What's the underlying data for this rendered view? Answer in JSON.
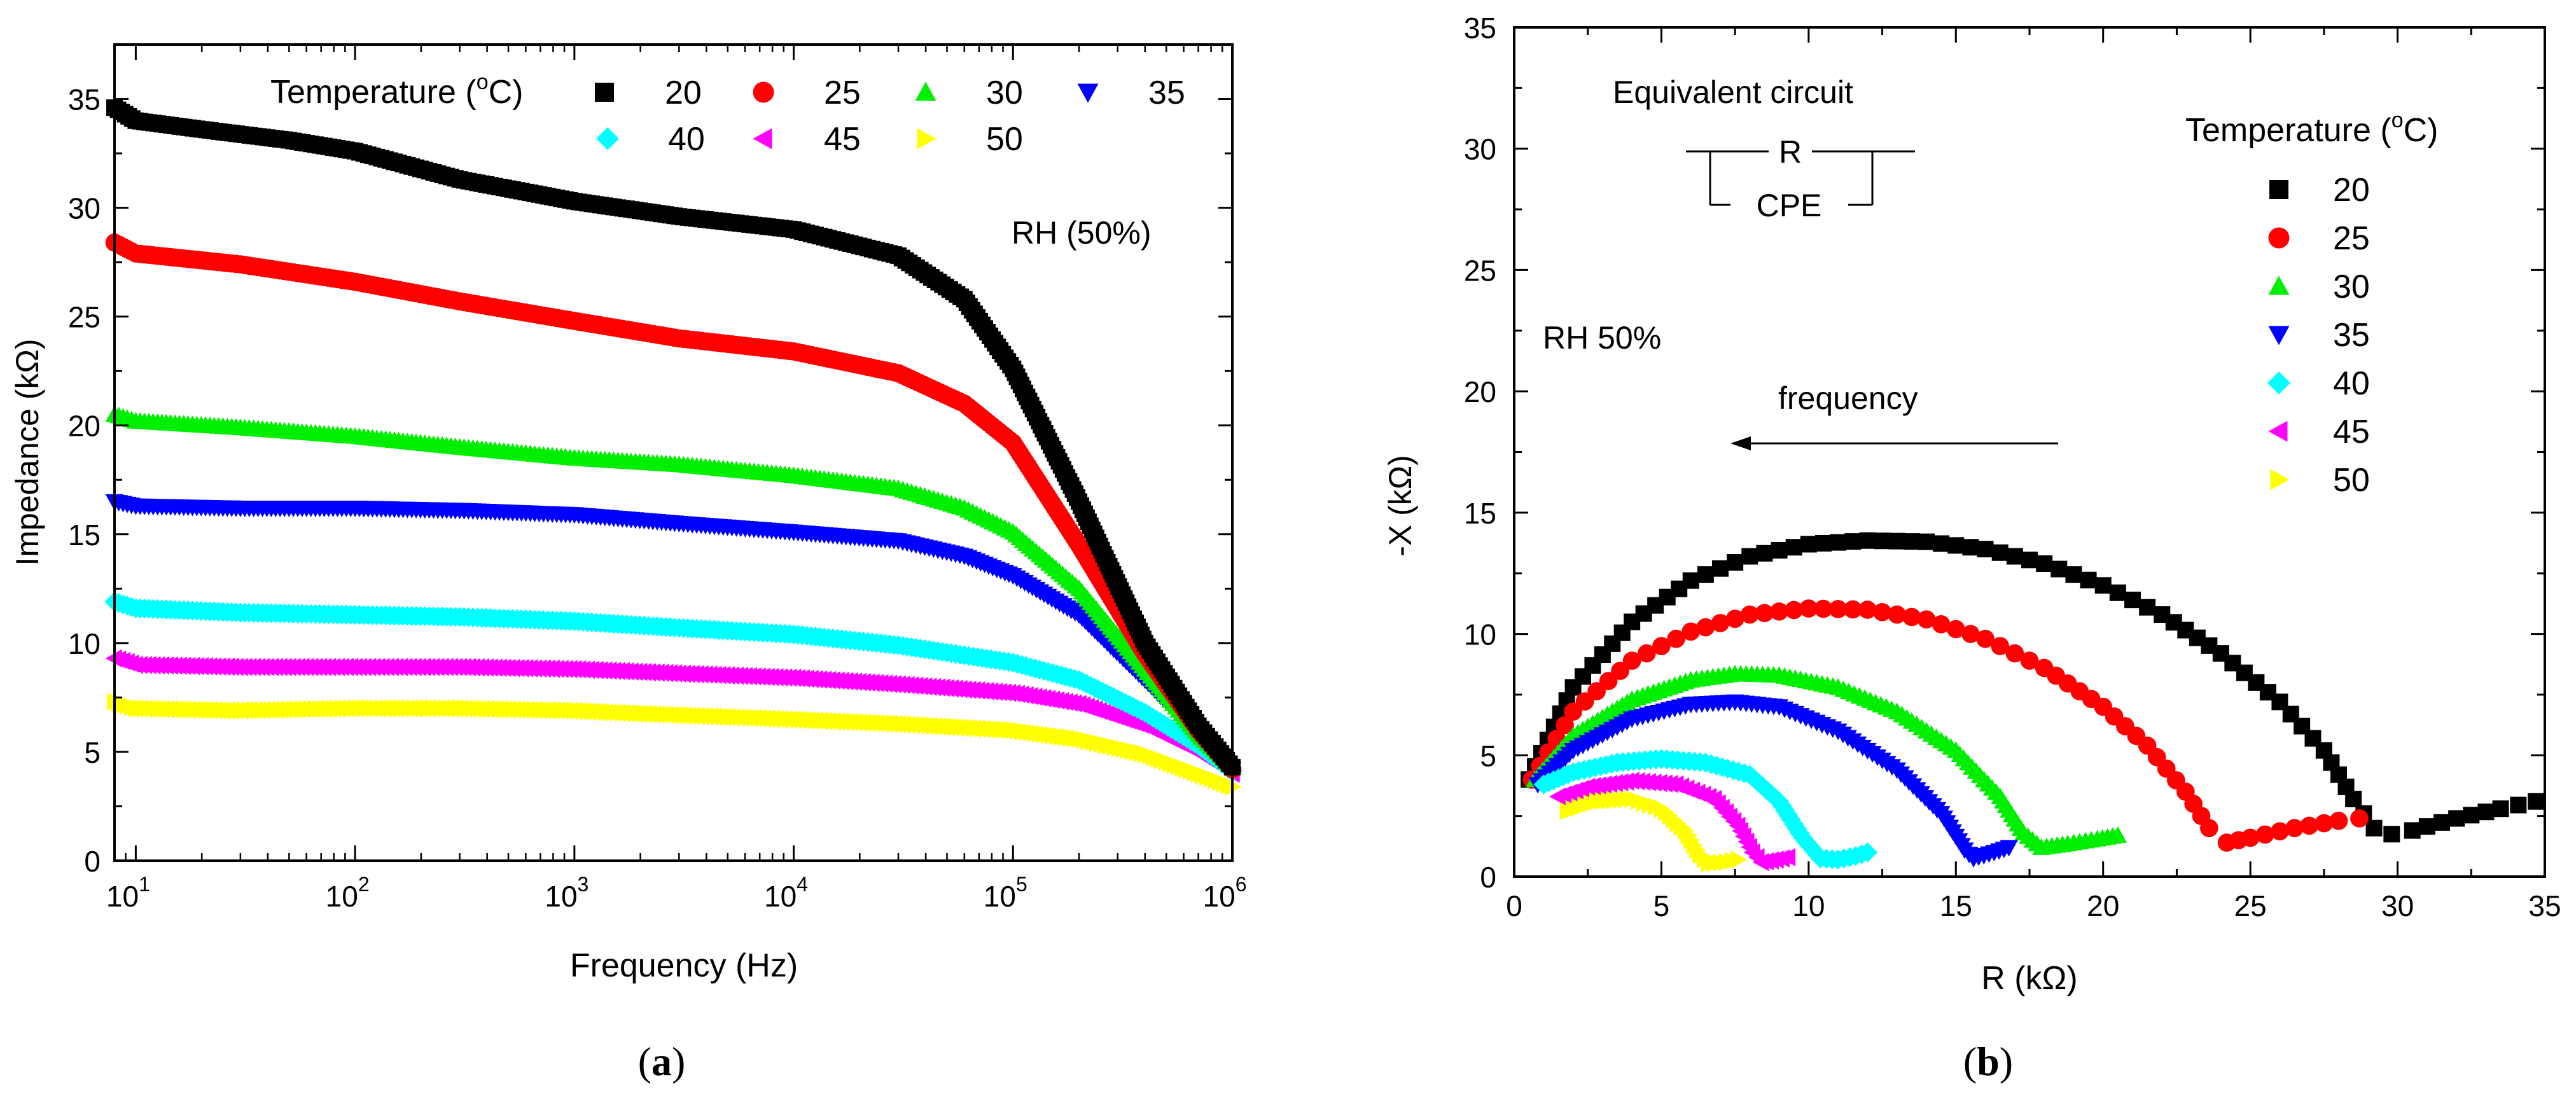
{
  "chart_data": [
    {
      "panel": "(a)",
      "type": "scatter",
      "title": "",
      "xlabel": "Frequency (Hz)",
      "ylabel": "Impedance (kΩ)",
      "xscale": "log",
      "xlim": [
        8,
        1000000
      ],
      "ylim": [
        0,
        37.5
      ],
      "xticks": [
        {
          "value": 10,
          "base": "10",
          "exp": "1"
        },
        {
          "value": 100,
          "base": "10",
          "exp": "2"
        },
        {
          "value": 1000,
          "base": "10",
          "exp": "3"
        },
        {
          "value": 10000,
          "base": "10",
          "exp": "4"
        },
        {
          "value": 100000,
          "base": "10",
          "exp": "5"
        },
        {
          "value": 1000000,
          "base": "10",
          "exp": "6"
        }
      ],
      "yticks": [
        "0",
        "5",
        "10",
        "15",
        "20",
        "25",
        "30",
        "35"
      ],
      "legend_title_pre": "Temperature (",
      "legend_title_deg": "o",
      "legend_title_post": "C)",
      "annotation": "RH (50%)",
      "series": [
        {
          "name": "20",
          "color": "#000000",
          "marker": "square",
          "points": [
            [
              8,
              34.6
            ],
            [
              10,
              34.0
            ],
            [
              20,
              33.6
            ],
            [
              50,
              33.1
            ],
            [
              100,
              32.6
            ],
            [
              300,
              31.3
            ],
            [
              1000,
              30.3
            ],
            [
              3000,
              29.6
            ],
            [
              10000,
              29.0
            ],
            [
              30000,
              27.8
            ],
            [
              60000,
              25.8
            ],
            [
              100000,
              22.6
            ],
            [
              200000,
              16.5
            ],
            [
              400000,
              10.0
            ],
            [
              700000,
              6.2
            ],
            [
              1000000,
              4.3
            ]
          ]
        },
        {
          "name": "25",
          "color": "#ff0000",
          "marker": "circle",
          "points": [
            [
              8,
              28.4
            ],
            [
              10,
              27.9
            ],
            [
              30,
              27.4
            ],
            [
              100,
              26.6
            ],
            [
              300,
              25.7
            ],
            [
              1000,
              24.8
            ],
            [
              3000,
              24.0
            ],
            [
              10000,
              23.4
            ],
            [
              30000,
              22.4
            ],
            [
              60000,
              21.0
            ],
            [
              100000,
              19.2
            ],
            [
              200000,
              14.5
            ],
            [
              400000,
              9.5
            ],
            [
              700000,
              6.0
            ],
            [
              1000000,
              4.2
            ]
          ]
        },
        {
          "name": "30",
          "color": "#00ee00",
          "marker": "triangle-up",
          "points": [
            [
              8,
              20.5
            ],
            [
              10,
              20.2
            ],
            [
              30,
              19.9
            ],
            [
              100,
              19.5
            ],
            [
              300,
              19.0
            ],
            [
              1000,
              18.5
            ],
            [
              3000,
              18.2
            ],
            [
              10000,
              17.7
            ],
            [
              30000,
              17.1
            ],
            [
              60000,
              16.2
            ],
            [
              100000,
              15.1
            ],
            [
              200000,
              12.5
            ],
            [
              400000,
              8.8
            ],
            [
              700000,
              5.8
            ],
            [
              1000000,
              4.3
            ]
          ]
        },
        {
          "name": "35",
          "color": "#0000ff",
          "marker": "triangle-down",
          "points": [
            [
              8,
              16.5
            ],
            [
              10,
              16.3
            ],
            [
              30,
              16.2
            ],
            [
              100,
              16.2
            ],
            [
              300,
              16.1
            ],
            [
              1000,
              15.9
            ],
            [
              3000,
              15.5
            ],
            [
              10000,
              15.1
            ],
            [
              30000,
              14.7
            ],
            [
              60000,
              14.0
            ],
            [
              100000,
              13.1
            ],
            [
              200000,
              11.3
            ],
            [
              400000,
              8.3
            ],
            [
              700000,
              5.8
            ],
            [
              1000000,
              4.2
            ]
          ]
        },
        {
          "name": "40",
          "color": "#00ffff",
          "marker": "diamond",
          "points": [
            [
              8,
              11.9
            ],
            [
              10,
              11.6
            ],
            [
              30,
              11.4
            ],
            [
              100,
              11.3
            ],
            [
              300,
              11.2
            ],
            [
              1000,
              11.0
            ],
            [
              3000,
              10.7
            ],
            [
              10000,
              10.4
            ],
            [
              30000,
              9.9
            ],
            [
              100000,
              9.1
            ],
            [
              200000,
              8.3
            ],
            [
              400000,
              6.8
            ],
            [
              700000,
              5.3
            ],
            [
              1000000,
              4.1
            ]
          ]
        },
        {
          "name": "45",
          "color": "#ff00ff",
          "marker": "triangle-left",
          "points": [
            [
              8,
              9.3
            ],
            [
              10,
              9.0
            ],
            [
              30,
              8.9
            ],
            [
              100,
              8.9
            ],
            [
              300,
              8.9
            ],
            [
              1000,
              8.8
            ],
            [
              3000,
              8.6
            ],
            [
              10000,
              8.4
            ],
            [
              30000,
              8.1
            ],
            [
              100000,
              7.7
            ],
            [
              200000,
              7.2
            ],
            [
              400000,
              6.2
            ],
            [
              700000,
              5.0
            ],
            [
              1000000,
              4.0
            ]
          ]
        },
        {
          "name": "50",
          "color": "#ffff00",
          "marker": "triangle-right",
          "points": [
            [
              8,
              7.3
            ],
            [
              10,
              7.0
            ],
            [
              30,
              6.9
            ],
            [
              100,
              7.0
            ],
            [
              300,
              7.0
            ],
            [
              1000,
              6.9
            ],
            [
              3000,
              6.7
            ],
            [
              10000,
              6.5
            ],
            [
              30000,
              6.3
            ],
            [
              100000,
              6.0
            ],
            [
              200000,
              5.6
            ],
            [
              400000,
              4.9
            ],
            [
              700000,
              4.0
            ],
            [
              1000000,
              3.4
            ]
          ]
        }
      ]
    },
    {
      "panel": "(b)",
      "type": "scatter",
      "title": "",
      "xlabel": "R (kΩ)",
      "ylabel": "-X (kΩ)",
      "xlim": [
        0,
        35
      ],
      "ylim": [
        0,
        35
      ],
      "xticks": [
        "0",
        "5",
        "10",
        "15",
        "20",
        "25",
        "30",
        "35"
      ],
      "yticks": [
        "0",
        "5",
        "10",
        "15",
        "20",
        "25",
        "30",
        "35"
      ],
      "legend_title_pre": "Temperature (",
      "legend_title_deg": "o",
      "legend_title_post": "C)",
      "annotation": "RH 50%",
      "circuit_title": "Equivalent circuit",
      "circuit_r": "R",
      "circuit_cpe": "CPE",
      "arrow_label": "frequency",
      "series": [
        {
          "name": "20",
          "color": "#000000",
          "marker": "square",
          "points": [
            [
              0.5,
              4.0
            ],
            [
              2,
              7.8
            ],
            [
              4,
              10.5
            ],
            [
              6,
              12.2
            ],
            [
              8,
              13.2
            ],
            [
              10,
              13.7
            ],
            [
              12,
              13.85
            ],
            [
              14,
              13.8
            ],
            [
              16,
              13.5
            ],
            [
              18,
              12.9
            ],
            [
              20,
              12.0
            ],
            [
              22,
              10.8
            ],
            [
              24,
              9.2
            ],
            [
              26,
              7.2
            ],
            [
              27.5,
              5.2
            ],
            [
              28.5,
              3.2
            ],
            [
              29.2,
              2.0
            ],
            [
              29.8,
              1.75
            ],
            [
              30.5,
              1.9
            ],
            [
              32,
              2.4
            ],
            [
              33.5,
              2.8
            ],
            [
              34.7,
              3.1
            ]
          ]
        },
        {
          "name": "25",
          "color": "#ff0000",
          "marker": "circle",
          "points": [
            [
              0.6,
              4.0
            ],
            [
              2,
              6.8
            ],
            [
              4,
              8.9
            ],
            [
              6,
              10.1
            ],
            [
              8,
              10.8
            ],
            [
              10,
              11.05
            ],
            [
              12,
              11.0
            ],
            [
              14,
              10.6
            ],
            [
              16,
              9.8
            ],
            [
              18,
              8.6
            ],
            [
              20,
              7.0
            ],
            [
              21.5,
              5.4
            ],
            [
              22.8,
              3.5
            ],
            [
              23.6,
              2.0
            ],
            [
              24.2,
              1.4
            ],
            [
              25,
              1.6
            ],
            [
              26.5,
              2.0
            ],
            [
              28,
              2.3
            ],
            [
              28.7,
              2.4
            ]
          ]
        },
        {
          "name": "30",
          "color": "#00ee00",
          "marker": "triangle-up",
          "points": [
            [
              0.7,
              4.0
            ],
            [
              2,
              5.8
            ],
            [
              4,
              7.3
            ],
            [
              6,
              8.1
            ],
            [
              7.5,
              8.35
            ],
            [
              9,
              8.3
            ],
            [
              11,
              7.8
            ],
            [
              13,
              6.8
            ],
            [
              15,
              5.2
            ],
            [
              16.5,
              3.3
            ],
            [
              17.3,
              1.8
            ],
            [
              17.9,
              1.2
            ],
            [
              18.8,
              1.35
            ],
            [
              19.8,
              1.55
            ],
            [
              20.5,
              1.7
            ]
          ]
        },
        {
          "name": "35",
          "color": "#0000ff",
          "marker": "triangle-down",
          "points": [
            [
              0.8,
              3.8
            ],
            [
              2,
              5.2
            ],
            [
              4,
              6.5
            ],
            [
              6,
              7.1
            ],
            [
              7.5,
              7.2
            ],
            [
              9,
              7.0
            ],
            [
              11,
              6.0
            ],
            [
              13,
              4.4
            ],
            [
              14.5,
              2.6
            ],
            [
              15.3,
              1.1
            ],
            [
              15.6,
              0.75
            ],
            [
              16.3,
              1.0
            ],
            [
              16.8,
              1.2
            ]
          ]
        },
        {
          "name": "40",
          "color": "#00ffff",
          "marker": "diamond",
          "points": [
            [
              1.0,
              3.8
            ],
            [
              2,
              4.3
            ],
            [
              3.5,
              4.7
            ],
            [
              5,
              4.85
            ],
            [
              6.5,
              4.7
            ],
            [
              8,
              4.2
            ],
            [
              9,
              3.1
            ],
            [
              9.8,
              1.6
            ],
            [
              10.4,
              0.75
            ],
            [
              11,
              0.7
            ],
            [
              11.6,
              0.85
            ],
            [
              12.0,
              1.0
            ]
          ]
        },
        {
          "name": "45",
          "color": "#ff00ff",
          "marker": "triangle-left",
          "points": [
            [
              1.5,
              3.3
            ],
            [
              2.5,
              3.7
            ],
            [
              4,
              3.95
            ],
            [
              5.5,
              3.8
            ],
            [
              6.8,
              3.2
            ],
            [
              7.6,
              2.1
            ],
            [
              8.1,
              1.0
            ],
            [
              8.4,
              0.6
            ],
            [
              8.9,
              0.7
            ],
            [
              9.3,
              0.8
            ]
          ]
        },
        {
          "name": "50",
          "color": "#ffff00",
          "marker": "triangle-right",
          "points": [
            [
              1.8,
              2.7
            ],
            [
              2.8,
              3.1
            ],
            [
              4,
              3.2
            ],
            [
              5,
              2.8
            ],
            [
              5.8,
              1.9
            ],
            [
              6.3,
              0.9
            ],
            [
              6.6,
              0.55
            ],
            [
              7.2,
              0.6
            ],
            [
              7.6,
              0.7
            ]
          ]
        }
      ]
    }
  ],
  "labels": {
    "a": "a",
    "b": "b",
    "open": "(",
    "close": ")"
  }
}
